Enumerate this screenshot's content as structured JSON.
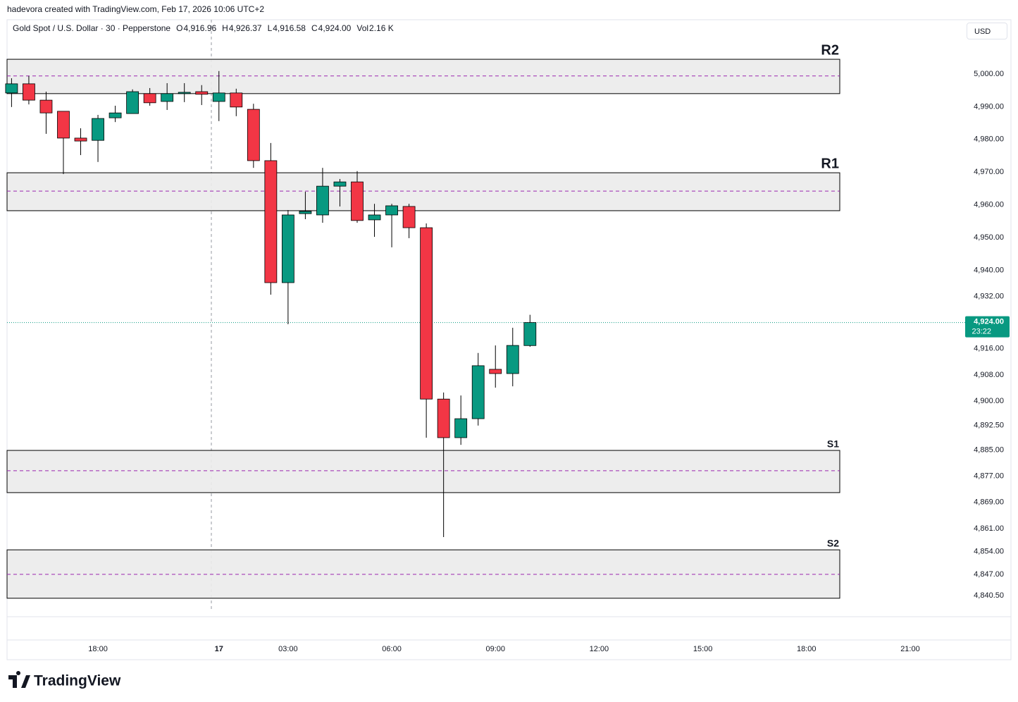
{
  "header": {
    "credit": "hadevora created with TradingView.com, Feb 17, 2026 10:06 UTC+2",
    "currency_button": "USD",
    "brand": "TradingView"
  },
  "chart_data": {
    "type": "candlestick",
    "title": "Gold Spot / U.S. Dollar · 30 · Pepperstone",
    "legend": [
      {
        "key": "O",
        "value": 4916.96,
        "label": "4,916.96"
      },
      {
        "key": "H",
        "value": 4926.37,
        "label": "4,926.37"
      },
      {
        "key": "L",
        "value": 4916.58,
        "label": "4,916.58"
      },
      {
        "key": "C",
        "value": 4924.0,
        "label": "4,924.00"
      },
      {
        "key": "Vol",
        "value": 2160,
        "label": "2.16 K"
      }
    ],
    "up_color": "#089981",
    "down_color": "#f23645",
    "categories": [
      null,
      null,
      null,
      null,
      null,
      "18:00",
      null,
      null,
      null,
      null,
      null,
      null,
      "17",
      null,
      null,
      null,
      "03:00",
      null,
      null,
      null,
      null,
      null,
      "06:00",
      null,
      null,
      null,
      null,
      null,
      "09:00",
      null,
      null,
      null,
      null,
      null,
      "12:00",
      null,
      null,
      null,
      null,
      null,
      "15:00",
      null,
      null,
      null,
      null,
      null,
      "18:00",
      null,
      null,
      null,
      null,
      null,
      "21:00",
      null,
      null,
      null
    ],
    "open": [
      4994.2,
      4997.0,
      4992.0,
      4988.6,
      4980.4,
      4979.7,
      4986.6,
      4987.9,
      4994.0,
      4991.6,
      4994.0,
      4994.6,
      4991.6,
      4994.2,
      4989.2,
      4973.5,
      4936.2,
      4957.3,
      4956.9,
      4965.7,
      4967.0,
      4955.4,
      4956.9,
      4959.5,
      4953.0,
      4900.6,
      4888.8,
      4894.6,
      4909.7,
      4908.4,
      4916.96,
      null,
      null,
      null,
      null,
      null,
      null,
      null,
      null,
      null,
      null,
      null,
      null,
      null,
      null,
      null,
      null,
      null,
      null,
      null,
      null,
      null,
      null,
      null,
      null,
      null
    ],
    "high": [
      4998.7,
      4999.4,
      4994.6,
      4988.6,
      4983.4,
      4987.5,
      4990.3,
      4995.3,
      4995.7,
      4997.2,
      4997.2,
      4996.6,
      5000.9,
      4995.5,
      4990.9,
      4978.9,
      4958.4,
      4964.0,
      4971.3,
      4967.9,
      4970.3,
      4960.3,
      4960.3,
      4960.3,
      4954.3,
      4902.6,
      4901.7,
      4914.7,
      4917.0,
      4922.4,
      4926.37,
      null,
      null,
      null,
      null,
      null,
      null,
      null,
      null,
      null,
      null,
      null,
      null,
      null,
      null,
      null,
      null,
      null,
      null,
      null,
      null,
      null,
      null,
      null,
      null,
      null
    ],
    "low": [
      4989.9,
      4990.7,
      4981.7,
      4969.4,
      4975.2,
      4973.1,
      4985.3,
      4987.9,
      4990.3,
      4989.0,
      4991.4,
      4990.5,
      4985.6,
      4987.1,
      4971.3,
      4932.5,
      4923.5,
      4955.6,
      4954.5,
      4959.5,
      4954.5,
      4950.2,
      4947.0,
      4949.8,
      4888.8,
      4858.4,
      4886.6,
      4892.5,
      4904.1,
      4904.5,
      4916.58,
      null,
      null,
      null,
      null,
      null,
      null,
      null,
      null,
      null,
      null,
      null,
      null,
      null,
      null,
      null,
      null,
      null,
      null,
      null,
      null,
      null,
      null,
      null,
      null,
      null
    ],
    "close": [
      4997.0,
      4992.0,
      4988.1,
      4980.4,
      4979.5,
      4986.4,
      4988.1,
      4994.6,
      4991.2,
      4994.0,
      4994.4,
      4993.8,
      4994.2,
      4989.9,
      4973.5,
      4936.2,
      4956.9,
      4958.0,
      4965.7,
      4967.0,
      4955.2,
      4956.9,
      4959.7,
      4953.0,
      4900.6,
      4888.8,
      4894.6,
      4910.8,
      4908.4,
      4917.0,
      4924.0,
      null,
      null,
      null,
      null,
      null,
      null,
      null,
      null,
      null,
      null,
      null,
      null,
      null,
      null,
      null,
      null,
      null,
      null,
      null,
      null,
      null,
      null,
      null,
      null,
      null
    ],
    "ylim": [
      4834.05,
      5016.59
    ],
    "yticks": [
      {
        "value": 5000,
        "label": "5,000.00"
      },
      {
        "value": 4990,
        "label": "4,990.00"
      },
      {
        "value": 4980,
        "label": "4,980.00"
      },
      {
        "value": 4970,
        "label": "4,970.00"
      },
      {
        "value": 4960,
        "label": "4,960.00"
      },
      {
        "value": 4950,
        "label": "4,950.00"
      },
      {
        "value": 4940,
        "label": "4,940.00"
      },
      {
        "value": 4932,
        "label": "4,932.00"
      },
      {
        "value": 4916,
        "label": "4,916.00"
      },
      {
        "value": 4908,
        "label": "4,908.00"
      },
      {
        "value": 4900,
        "label": "4,900.00"
      },
      {
        "value": 4892.5,
        "label": "4,892.50"
      },
      {
        "value": 4885,
        "label": "4,885.00"
      },
      {
        "value": 4877,
        "label": "4,877.00"
      },
      {
        "value": 4869,
        "label": "4,869.00"
      },
      {
        "value": 4861,
        "label": "4,861.00"
      },
      {
        "value": 4854,
        "label": "4,854.00"
      },
      {
        "value": 4847,
        "label": "4,847.00"
      },
      {
        "value": 4840.5,
        "label": "4,840.50"
      }
    ],
    "zones": [
      {
        "label": "R2",
        "top": 5004.5,
        "bottom": 4994.0,
        "mid": 4999.4
      },
      {
        "label": "R1",
        "top": 4969.8,
        "bottom": 4958.2,
        "mid": 4964.2
      },
      {
        "label": "S1",
        "top": 4884.9,
        "bottom": 4872.0,
        "mid": 4878.7
      },
      {
        "label": "S2",
        "top": 4854.5,
        "bottom": 4839.7,
        "mid": 4847.0
      }
    ],
    "last_price": {
      "value": 4924.0,
      "label": "4,924.00"
    },
    "countdown": "23:22"
  }
}
